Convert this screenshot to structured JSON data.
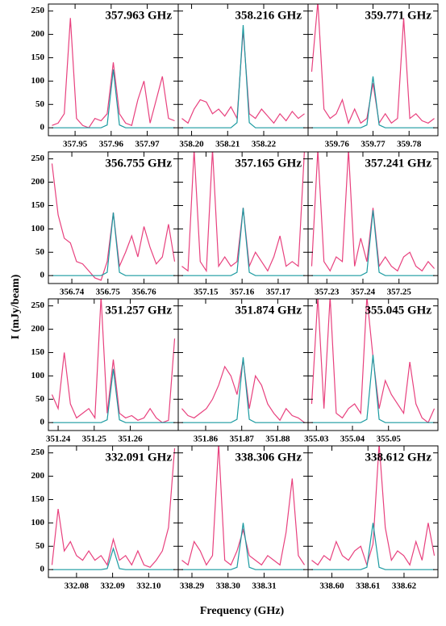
{
  "xlabel": "Frequency (GHz)",
  "ylabel": "I (mJy/beam)",
  "chart_data": [
    {
      "type": "line",
      "title": "357.963 GHz",
      "xlim": [
        357.9426,
        357.9786
      ],
      "xticks": [
        357.95,
        357.96,
        357.97
      ],
      "ylim": [
        -17,
        265
      ],
      "yticks": [
        0,
        50,
        100,
        150,
        200,
        250
      ],
      "x": [
        357.9436,
        357.9453,
        357.947,
        357.9487,
        357.9504,
        357.9521,
        357.9538,
        357.9555,
        357.9572,
        357.9589,
        357.9606,
        357.9623,
        357.964,
        357.9657,
        357.9674,
        357.9691,
        357.9708,
        357.9725,
        357.9742,
        357.9759,
        357.9776
      ],
      "series": [
        {
          "color": "#e8417e",
          "values": [
            5,
            10,
            30,
            235,
            20,
            5,
            0,
            20,
            15,
            30,
            140,
            30,
            10,
            5,
            60,
            100,
            10,
            60,
            110,
            20,
            15
          ]
        },
        {
          "color": "#1a9aa0",
          "values": [
            0,
            0,
            0,
            0,
            0,
            0,
            0,
            0,
            0,
            6,
            125,
            6,
            0,
            0,
            0,
            0,
            0,
            0,
            0,
            0,
            0
          ]
        }
      ]
    },
    {
      "type": "line",
      "title": "358.216 GHz",
      "xlim": [
        358.1963,
        358.2323
      ],
      "xticks": [
        {
          "value": 358.2,
          "label": "358.20"
        },
        358.21,
        358.22
      ],
      "ylim": [
        -17,
        265
      ],
      "yticks": [
        0,
        50,
        100,
        150,
        200,
        250
      ],
      "x": [
        358.1973,
        358.199,
        358.2007,
        358.2024,
        358.2041,
        358.2058,
        358.2075,
        358.2092,
        358.2109,
        358.2126,
        358.2143,
        358.216,
        358.2177,
        358.2194,
        358.2211,
        358.2228,
        358.2245,
        358.2262,
        358.2279,
        358.2296,
        358.2313
      ],
      "series": [
        {
          "color": "#e8417e",
          "values": [
            20,
            10,
            40,
            60,
            55,
            30,
            40,
            25,
            45,
            20,
            210,
            30,
            20,
            40,
            25,
            10,
            30,
            15,
            35,
            20,
            30
          ]
        },
        {
          "color": "#1a9aa0",
          "values": [
            0,
            0,
            0,
            0,
            0,
            0,
            0,
            0,
            0,
            11,
            220,
            11,
            0,
            0,
            0,
            0,
            0,
            0,
            0,
            0,
            0
          ]
        }
      ]
    },
    {
      "type": "line",
      "title": "359.771 GHz",
      "xlim": [
        359.752,
        359.788
      ],
      "xticks": [
        359.76,
        359.77,
        359.78
      ],
      "ylim": [
        -17,
        265
      ],
      "yticks": [
        0,
        50,
        100,
        150,
        200,
        250
      ],
      "x": [
        359.753,
        359.7547,
        359.7564,
        359.7581,
        359.7598,
        359.7615,
        359.7632,
        359.7649,
        359.7666,
        359.7683,
        359.77,
        359.7717,
        359.7734,
        359.7751,
        359.7768,
        359.7785,
        359.7802,
        359.7819,
        359.7836,
        359.7853,
        359.787
      ],
      "series": [
        {
          "color": "#e8417e",
          "values": [
            120,
            270,
            40,
            20,
            30,
            60,
            10,
            40,
            10,
            20,
            95,
            10,
            30,
            10,
            20,
            235,
            20,
            30,
            15,
            10,
            20
          ]
        },
        {
          "color": "#1a9aa0",
          "values": [
            0,
            0,
            0,
            0,
            0,
            0,
            0,
            0,
            0,
            6,
            110,
            6,
            0,
            0,
            0,
            0,
            0,
            0,
            0,
            0,
            0
          ]
        }
      ]
    },
    {
      "type": "line",
      "title": "356.755 GHz",
      "xlim": [
        356.7335,
        356.7695
      ],
      "xticks": [
        356.74,
        356.75,
        356.76
      ],
      "ylim": [
        -17,
        265
      ],
      "yticks": [
        0,
        50,
        100,
        150,
        200,
        250
      ],
      "x": [
        356.7345,
        356.7362,
        356.7379,
        356.7396,
        356.7413,
        356.743,
        356.7447,
        356.7464,
        356.7481,
        356.7498,
        356.7515,
        356.7532,
        356.7549,
        356.7566,
        356.7583,
        356.76,
        356.7617,
        356.7634,
        356.7651,
        356.7668,
        356.7685
      ],
      "series": [
        {
          "color": "#e8417e",
          "values": [
            240,
            130,
            80,
            70,
            30,
            25,
            10,
            -5,
            -10,
            30,
            135,
            20,
            50,
            85,
            40,
            105,
            60,
            25,
            40,
            110,
            30
          ]
        },
        {
          "color": "#1a9aa0",
          "values": [
            0,
            0,
            0,
            0,
            0,
            0,
            0,
            0,
            0,
            7,
            135,
            7,
            0,
            0,
            0,
            0,
            0,
            0,
            0,
            0,
            0
          ]
        }
      ]
    },
    {
      "type": "line",
      "title": "357.165 GHz",
      "xlim": [
        357.1423,
        357.1783
      ],
      "xticks": [
        357.15,
        357.16,
        357.17
      ],
      "ylim": [
        -17,
        265
      ],
      "yticks": [
        0,
        50,
        100,
        150,
        200,
        250
      ],
      "x": [
        357.1433,
        357.145,
        357.1467,
        357.1484,
        357.1501,
        357.1518,
        357.1535,
        357.1552,
        357.1569,
        357.1586,
        357.1603,
        357.162,
        357.1637,
        357.1654,
        357.1671,
        357.1688,
        357.1705,
        357.1722,
        357.1739,
        357.1756,
        357.1773
      ],
      "series": [
        {
          "color": "#e8417e",
          "values": [
            20,
            10,
            270,
            30,
            10,
            270,
            20,
            40,
            20,
            30,
            145,
            20,
            50,
            30,
            10,
            40,
            85,
            20,
            30,
            20,
            270
          ]
        },
        {
          "color": "#1a9aa0",
          "values": [
            0,
            0,
            0,
            0,
            0,
            0,
            0,
            0,
            0,
            7,
            145,
            7,
            0,
            0,
            0,
            0,
            0,
            0,
            0,
            0,
            0
          ]
        }
      ]
    },
    {
      "type": "line",
      "title": "357.241 GHz",
      "xlim": [
        357.2248,
        357.2608
      ],
      "xticks": [
        357.23,
        357.24,
        357.25
      ],
      "ylim": [
        -17,
        265
      ],
      "yticks": [
        0,
        50,
        100,
        150,
        200,
        250
      ],
      "x": [
        357.2258,
        357.2275,
        357.2292,
        357.2309,
        357.2326,
        357.2343,
        357.236,
        357.2377,
        357.2394,
        357.2411,
        357.2428,
        357.2445,
        357.2462,
        357.2479,
        357.2496,
        357.2513,
        357.253,
        357.2547,
        357.2564,
        357.2581,
        357.2598
      ],
      "series": [
        {
          "color": "#e8417e",
          "values": [
            20,
            270,
            30,
            10,
            40,
            30,
            270,
            20,
            80,
            30,
            145,
            20,
            40,
            20,
            10,
            40,
            50,
            20,
            10,
            30,
            15
          ]
        },
        {
          "color": "#1a9aa0",
          "values": [
            0,
            0,
            0,
            0,
            0,
            0,
            0,
            0,
            0,
            7,
            140,
            7,
            0,
            0,
            0,
            0,
            0,
            0,
            0,
            0,
            0
          ]
        }
      ]
    },
    {
      "type": "line",
      "title": "351.257 GHz",
      "xlim": [
        351.2373,
        351.2733
      ],
      "xticks": [
        351.24,
        351.25,
        351.26
      ],
      "ylim": [
        -17,
        265
      ],
      "yticks": [
        0,
        50,
        100,
        150,
        200,
        250
      ],
      "x": [
        351.2383,
        351.24,
        351.2417,
        351.2434,
        351.2451,
        351.2468,
        351.2485,
        351.2502,
        351.2519,
        351.2536,
        351.2553,
        351.257,
        351.2587,
        351.2604,
        351.2621,
        351.2638,
        351.2655,
        351.2672,
        351.2689,
        351.2706,
        351.2723
      ],
      "series": [
        {
          "color": "#e8417e",
          "values": [
            60,
            30,
            150,
            40,
            10,
            20,
            30,
            10,
            270,
            20,
            135,
            20,
            10,
            15,
            5,
            10,
            30,
            10,
            0,
            5,
            180
          ]
        },
        {
          "color": "#1a9aa0",
          "values": [
            0,
            0,
            0,
            0,
            0,
            0,
            0,
            0,
            0,
            6,
            115,
            6,
            0,
            0,
            0,
            0,
            0,
            0,
            0,
            0,
            0
          ]
        }
      ]
    },
    {
      "type": "line",
      "title": "351.874 GHz",
      "xlim": [
        351.8524,
        351.8884
      ],
      "xticks": [
        351.86,
        351.87,
        351.88
      ],
      "ylim": [
        -17,
        265
      ],
      "yticks": [
        0,
        50,
        100,
        150,
        200,
        250
      ],
      "x": [
        351.8534,
        351.8551,
        351.8568,
        351.8585,
        351.8602,
        351.8619,
        351.8636,
        351.8653,
        351.867,
        351.8687,
        351.8704,
        351.8721,
        351.8738,
        351.8755,
        351.8772,
        351.8789,
        351.8806,
        351.8823,
        351.884,
        351.8857,
        351.8874
      ],
      "series": [
        {
          "color": "#e8417e",
          "values": [
            30,
            15,
            10,
            20,
            30,
            50,
            80,
            120,
            100,
            60,
            135,
            30,
            100,
            80,
            40,
            20,
            5,
            30,
            15,
            10,
            0
          ]
        },
        {
          "color": "#1a9aa0",
          "values": [
            0,
            0,
            0,
            0,
            0,
            0,
            0,
            0,
            0,
            7,
            140,
            7,
            0,
            0,
            0,
            0,
            0,
            0,
            0,
            0,
            0
          ]
        }
      ]
    },
    {
      "type": "line",
      "title": "355.045 GHz",
      "xlim": [
        355.0277,
        355.0637
      ],
      "xticks": [
        355.03,
        355.04,
        355.05
      ],
      "ylim": [
        -17,
        265
      ],
      "yticks": [
        0,
        50,
        100,
        150,
        200,
        250
      ],
      "x": [
        355.0287,
        355.0304,
        355.0321,
        355.0338,
        355.0355,
        355.0372,
        355.0389,
        355.0406,
        355.0423,
        355.044,
        355.0457,
        355.0474,
        355.0491,
        355.0508,
        355.0525,
        355.0542,
        355.0559,
        355.0576,
        355.0593,
        355.061,
        355.0627
      ],
      "series": [
        {
          "color": "#e8417e",
          "values": [
            40,
            270,
            30,
            270,
            20,
            10,
            30,
            40,
            20,
            270,
            140,
            30,
            90,
            60,
            40,
            20,
            130,
            40,
            10,
            0,
            30
          ]
        },
        {
          "color": "#1a9aa0",
          "values": [
            0,
            0,
            0,
            0,
            0,
            0,
            0,
            0,
            0,
            7,
            145,
            7,
            0,
            0,
            0,
            0,
            0,
            0,
            0,
            0,
            0
          ]
        }
      ]
    },
    {
      "type": "line",
      "title": "332.091 GHz",
      "xlim": [
        332.0722,
        332.1082
      ],
      "xticks": [
        332.08,
        332.09,
        {
          "value": 332.1,
          "label": "332.10"
        }
      ],
      "ylim": [
        -17,
        265
      ],
      "yticks": [
        0,
        50,
        100,
        150,
        200,
        250
      ],
      "x": [
        332.0732,
        332.0749,
        332.0766,
        332.0783,
        332.08,
        332.0817,
        332.0834,
        332.0851,
        332.0868,
        332.0885,
        332.0902,
        332.0919,
        332.0936,
        332.0953,
        332.097,
        332.0987,
        332.1004,
        332.1021,
        332.1038,
        332.1055,
        332.1072
      ],
      "series": [
        {
          "color": "#e8417e",
          "values": [
            10,
            130,
            40,
            60,
            30,
            20,
            40,
            20,
            30,
            10,
            65,
            20,
            30,
            10,
            40,
            10,
            5,
            20,
            40,
            90,
            260
          ]
        },
        {
          "color": "#1a9aa0",
          "values": [
            0,
            0,
            0,
            0,
            0,
            0,
            0,
            0,
            0,
            2,
            45,
            2,
            0,
            0,
            0,
            0,
            0,
            0,
            0,
            0,
            0
          ]
        }
      ]
    },
    {
      "type": "line",
      "title": "338.306 GHz",
      "xlim": [
        338.2862,
        338.3222
      ],
      "xticks": [
        338.29,
        {
          "value": 338.3,
          "label": "338.30"
        },
        338.31
      ],
      "ylim": [
        -17,
        265
      ],
      "yticks": [
        0,
        50,
        100,
        150,
        200,
        250
      ],
      "x": [
        338.2872,
        338.2889,
        338.2906,
        338.2923,
        338.294,
        338.2957,
        338.2974,
        338.2991,
        338.3008,
        338.3025,
        338.3042,
        338.3059,
        338.3076,
        338.3093,
        338.311,
        338.3127,
        338.3144,
        338.3161,
        338.3178,
        338.3195,
        338.3212
      ],
      "series": [
        {
          "color": "#e8417e",
          "values": [
            20,
            10,
            60,
            40,
            10,
            30,
            270,
            20,
            10,
            40,
            85,
            30,
            20,
            10,
            30,
            20,
            10,
            80,
            195,
            30,
            10
          ]
        },
        {
          "color": "#1a9aa0",
          "values": [
            0,
            0,
            0,
            0,
            0,
            0,
            0,
            0,
            0,
            5,
            100,
            5,
            0,
            0,
            0,
            0,
            0,
            0,
            0,
            0,
            0
          ]
        }
      ]
    },
    {
      "type": "line",
      "title": "338.612 GHz",
      "xlim": [
        338.5934,
        338.6294
      ],
      "xticks": [
        {
          "value": 338.6,
          "label": "338.60"
        },
        338.61,
        338.62
      ],
      "ylim": [
        -17,
        265
      ],
      "yticks": [
        0,
        50,
        100,
        150,
        200,
        250
      ],
      "x": [
        338.5944,
        338.5961,
        338.5978,
        338.5995,
        338.6012,
        338.6029,
        338.6046,
        338.6063,
        338.608,
        338.6097,
        338.6114,
        338.6131,
        338.6148,
        338.6165,
        338.6182,
        338.6199,
        338.6216,
        338.6233,
        338.625,
        338.6267,
        338.6284
      ],
      "series": [
        {
          "color": "#e8417e",
          "values": [
            20,
            10,
            30,
            20,
            60,
            30,
            20,
            40,
            50,
            10,
            55,
            270,
            90,
            20,
            40,
            30,
            10,
            60,
            20,
            100,
            30
          ]
        },
        {
          "color": "#1a9aa0",
          "values": [
            0,
            0,
            0,
            0,
            0,
            0,
            0,
            0,
            0,
            5,
            100,
            5,
            0,
            0,
            0,
            0,
            0,
            0,
            0,
            0,
            0
          ]
        }
      ]
    }
  ]
}
